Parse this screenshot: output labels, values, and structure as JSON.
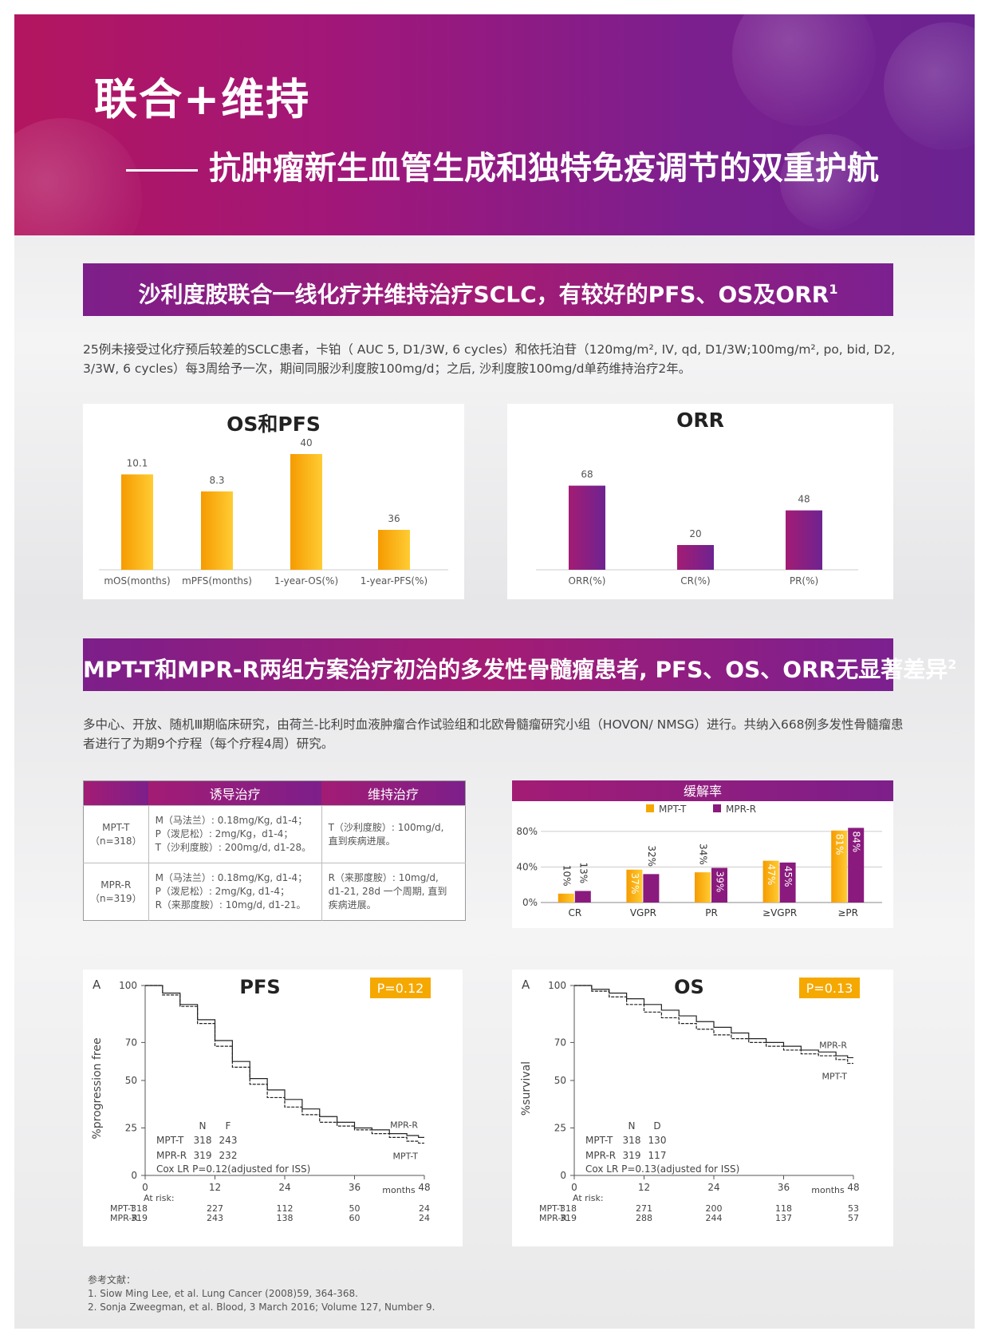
{
  "header": {
    "title": "联合+维持",
    "subtitle": "抗肿瘤新生血管生成和独特免疫调节的双重护航"
  },
  "section1": {
    "banner": "沙利度胺联合一线化疗并维持治疗SCLC，有较好的PFS、OS及ORR",
    "banner_ref": "1",
    "description": "25例未接受过化疗预后较差的SCLC患者，卡铂（ AUC 5, D1/3W, 6 cycles）和依托泊苷（120mg/m², IV, qd, D1/3W;100mg/m², po, bid, D2, 3/3W, 6 cycles）每3周给予一次，期间同服沙利度胺100mg/d；之后, 沙利度胺100mg/d单药维持治疗2年。"
  },
  "section2": {
    "banner": "MPT-T和MPR-R两组方案治疗初治的多发性骨髓瘤患者, PFS、OS、ORR无显著差异",
    "banner_ref": "2",
    "description": "多中心、开放、随机Ⅲ期临床研究，由荷兰-比利时血液肿瘤合作试验组和北欧骨髓瘤研究小组（HOVON/ NMSG）进行。共纳入668例多发性骨髓瘤患者进行了为期9个疗程（每个疗程4周）研究。"
  },
  "regimen_table": {
    "headers": [
      "",
      "诱导治疗",
      "维持治疗"
    ],
    "rows": [
      {
        "group": "MPT-T",
        "n": "（n=318）",
        "induction": [
          "M（马法兰）: 0.18mg/Kg, d1-4；",
          "P（泼尼松）: 2mg/Kg，d1-4；",
          "T（沙利度胺）: 200mg/d, d1-28。"
        ],
        "maintenance": [
          "T（沙利度胺）: 100mg/d,",
          "直到疾病进展。"
        ]
      },
      {
        "group": "MPR-R",
        "n": "（n=319）",
        "induction": [
          "M（马法兰）: 0.18mg/Kg, d1-4；",
          "P（泼尼松）: 2mg/Kg, d1-4；",
          "R（来那度胺）: 10mg/d, d1-21。"
        ],
        "maintenance": [
          "R（来那度胺）: 10mg/d,",
          "d1-21, 28d 一个周期, 直到",
          "疾病进展。"
        ]
      }
    ]
  },
  "chart_data": [
    {
      "id": "os_pfs",
      "type": "bar",
      "title": "OS和PFS",
      "categories": [
        "mOS(months)",
        "mPFS(months)",
        "1-year-OS(%)",
        "1-year-PFS(%)"
      ],
      "values": [
        10.1,
        8.3,
        40,
        36
      ],
      "value_labels": [
        "10.1",
        "8.3",
        "40",
        "36"
      ],
      "scale_note": "each bar on its own visual scale; left pair in months, right pair in %",
      "color": "#f5a800"
    },
    {
      "id": "orr",
      "type": "bar",
      "title": "ORR",
      "categories": [
        "ORR(%)",
        "CR(%)",
        "PR(%)"
      ],
      "values": [
        68,
        20,
        48
      ],
      "value_labels": [
        "68",
        "20",
        "48"
      ],
      "color": "#7d1f8a"
    },
    {
      "id": "response_rate",
      "type": "bar",
      "title": "缓解率",
      "categories": [
        "CR",
        "VGPR",
        "PR",
        "≥VGPR",
        "≥PR"
      ],
      "series": [
        {
          "name": "MPT-T",
          "values": [
            10,
            37,
            34,
            47,
            81
          ],
          "labels": [
            "10%",
            "37%",
            "34%",
            "47%",
            "81%"
          ],
          "color": "#f5a800"
        },
        {
          "name": "MPR-R",
          "values": [
            13,
            32,
            39,
            45,
            84
          ],
          "labels": [
            "13%",
            "32%",
            "39%",
            "45%",
            "84%"
          ],
          "color": "#8a1a7e"
        }
      ],
      "yticks": [
        "0%",
        "40%",
        "80%"
      ],
      "ylim": [
        0,
        90
      ],
      "legend": "top-center"
    },
    {
      "id": "pfs_km",
      "type": "line",
      "panel_letter": "A",
      "title": "PFS",
      "p_value": "P=0.12",
      "ylabel": "%progression free",
      "xlabel": "months",
      "xticks": [
        "0",
        "12",
        "24",
        "36",
        "48"
      ],
      "yticks": [
        "0",
        "25",
        "50",
        "70",
        "100"
      ],
      "xlim": [
        0,
        48
      ],
      "ylim": [
        0,
        100
      ],
      "series": [
        {
          "name": "MPR-R",
          "x": [
            0,
            3,
            6,
            9,
            12,
            15,
            18,
            21,
            24,
            27,
            30,
            33,
            36,
            39,
            42,
            45,
            47
          ],
          "y": [
            100,
            96,
            90,
            82,
            71,
            60,
            51,
            45,
            40,
            35,
            31,
            28,
            25,
            24,
            22,
            21,
            20
          ]
        },
        {
          "name": "MPT-T",
          "x": [
            0,
            3,
            6,
            9,
            12,
            15,
            18,
            21,
            24,
            27,
            30,
            33,
            36,
            39,
            42,
            45,
            47
          ],
          "y": [
            100,
            95,
            89,
            80,
            68,
            57,
            48,
            41,
            36,
            32,
            28,
            26,
            24,
            22,
            20,
            18,
            17
          ]
        }
      ],
      "stats": {
        "header": [
          "N",
          "F"
        ],
        "rows": [
          [
            "MPT-T",
            "318",
            "243"
          ],
          [
            "MPR-R",
            "319",
            "232"
          ]
        ],
        "cox": "Cox LR P=0.12(adjusted for ISS)"
      },
      "at_risk": {
        "label": "At risk:",
        "rows": [
          {
            "name": "MPT-T",
            "values": [
              "318",
              "227",
              "112",
              "50",
              "24"
            ]
          },
          {
            "name": "MPR-R",
            "values": [
              "319",
              "243",
              "138",
              "60",
              "24"
            ]
          }
        ]
      }
    },
    {
      "id": "os_km",
      "type": "line",
      "panel_letter": "A",
      "title": "OS",
      "p_value": "P=0.13",
      "ylabel": "%survival",
      "xlabel": "months",
      "xticks": [
        "0",
        "12",
        "24",
        "36",
        "48"
      ],
      "yticks": [
        "0",
        "25",
        "50",
        "70",
        "100"
      ],
      "xlim": [
        0,
        48
      ],
      "ylim": [
        0,
        100
      ],
      "series": [
        {
          "name": "MPR-R",
          "x": [
            0,
            3,
            6,
            9,
            12,
            15,
            18,
            21,
            24,
            27,
            30,
            33,
            36,
            39,
            42,
            45,
            47
          ],
          "y": [
            100,
            98,
            96,
            93,
            90,
            87,
            84,
            81,
            78,
            75,
            72,
            70,
            68,
            66,
            65,
            63,
            62
          ]
        },
        {
          "name": "MPT-T",
          "x": [
            0,
            3,
            6,
            9,
            12,
            15,
            18,
            21,
            24,
            27,
            30,
            33,
            36,
            39,
            42,
            45,
            47
          ],
          "y": [
            100,
            97,
            94,
            90,
            86,
            83,
            80,
            77,
            74,
            72,
            70,
            68,
            66,
            64,
            63,
            61,
            59
          ]
        }
      ],
      "stats": {
        "header": [
          "N",
          "D"
        ],
        "rows": [
          [
            "MPT-T",
            "318",
            "130"
          ],
          [
            "MPR-R",
            "319",
            "117"
          ]
        ],
        "cox": "Cox LR P=0.13(adjusted for ISS)"
      },
      "at_risk": {
        "label": "At risk:",
        "rows": [
          {
            "name": "MPT-T",
            "values": [
              "318",
              "271",
              "200",
              "118",
              "53"
            ]
          },
          {
            "name": "MPR-R",
            "values": [
              "319",
              "288",
              "244",
              "137",
              "57"
            ]
          }
        ]
      }
    }
  ],
  "references": {
    "title": "参考文献：",
    "items": [
      "1. Siow Ming Lee, et al. Lung Cancer (2008)59, 364-368.",
      "2. Sonja Zweegman, et al. Blood, 3 March 2016; Volume 127, Number 9."
    ]
  }
}
